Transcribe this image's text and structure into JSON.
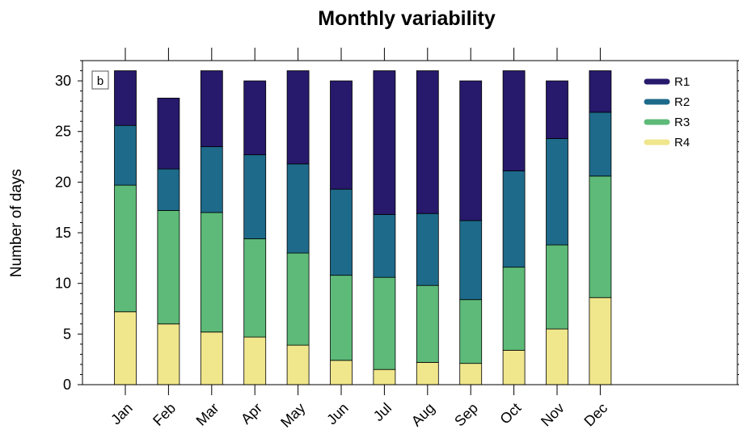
{
  "chart_data": {
    "type": "bar",
    "stacked": true,
    "title": "Monthly variability",
    "panel_label": "b",
    "xlabel": "",
    "ylabel": "Number of days",
    "ylim": [
      0,
      32
    ],
    "yticks": [
      0,
      5,
      10,
      15,
      20,
      25,
      30
    ],
    "categories": [
      "Jan",
      "Feb",
      "Mar",
      "Apr",
      "May",
      "Jun",
      "Jul",
      "Aug",
      "Sep",
      "Oct",
      "Nov",
      "Dec"
    ],
    "series": [
      {
        "name": "R4",
        "color": "#f0e68c",
        "values": [
          7.2,
          6.0,
          5.2,
          4.7,
          3.9,
          2.4,
          1.5,
          2.2,
          2.1,
          3.4,
          5.5,
          8.6
        ]
      },
      {
        "name": "R3",
        "color": "#5dba78",
        "values": [
          12.5,
          11.2,
          11.8,
          9.7,
          9.1,
          8.4,
          9.1,
          7.6,
          6.3,
          8.2,
          8.3,
          12.0
        ]
      },
      {
        "name": "R2",
        "color": "#1e6a8a",
        "values": [
          5.9,
          4.1,
          6.5,
          8.3,
          8.8,
          8.5,
          6.2,
          7.1,
          7.8,
          9.5,
          10.5,
          6.3
        ]
      },
      {
        "name": "R1",
        "color": "#27196b",
        "values": [
          5.4,
          7.0,
          7.5,
          7.3,
          9.2,
          10.7,
          14.2,
          14.1,
          13.8,
          9.9,
          5.7,
          4.1
        ]
      }
    ],
    "legend_order": [
      "R1",
      "R2",
      "R3",
      "R4"
    ],
    "legend_position": "top-right",
    "grid": false
  }
}
